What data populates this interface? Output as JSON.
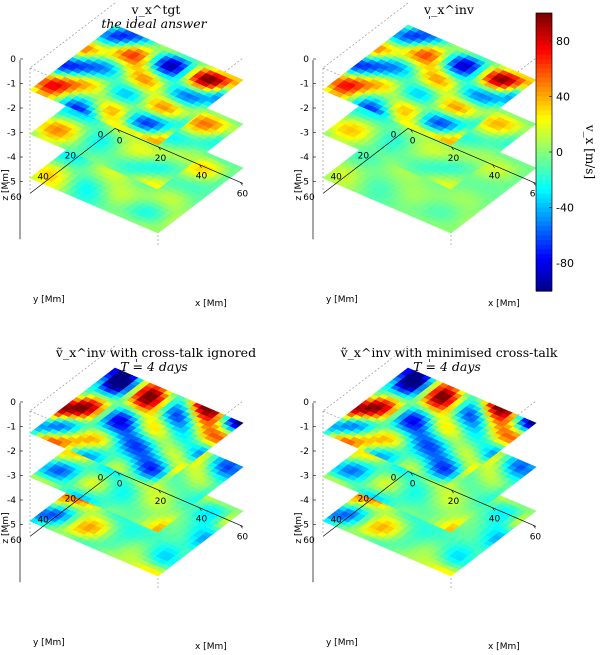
{
  "chart_data": [
    {
      "type": "heatmap",
      "title": "v_x^tgt",
      "subtitle": "the ideal answer",
      "xlabel": "x [Mm]",
      "ylabel": "y [Mm]",
      "zlabel": "z [Mm]",
      "xticks": [
        "0",
        "20",
        "40",
        "60"
      ],
      "yticks": [
        "0",
        "20",
        "40",
        "60"
      ],
      "zticks": [
        "0",
        "-1",
        "-2",
        "-3",
        "-4",
        "-5"
      ],
      "layers": [
        {
          "z": -1,
          "amplitude": 90
        },
        {
          "z": -3,
          "amplitude": 40
        },
        {
          "z": -5,
          "amplitude": 25
        }
      ],
      "seed": 11
    },
    {
      "type": "heatmap",
      "title": "v_x^inv",
      "subtitle": "",
      "xlabel": "x [Mm]",
      "ylabel": "y [Mm]",
      "zlabel": "z [Mm]",
      "xticks": [
        "0",
        "20",
        "40",
        "60"
      ],
      "yticks": [
        "0",
        "20",
        "40",
        "60"
      ],
      "zticks": [
        "0",
        "-1",
        "-2",
        "-3",
        "-4",
        "-5"
      ],
      "layers": [
        {
          "z": -1,
          "amplitude": 85
        },
        {
          "z": -3,
          "amplitude": 30
        },
        {
          "z": -5,
          "amplitude": 12
        }
      ],
      "seed": 11
    },
    {
      "type": "heatmap",
      "title": "ṽ_x^inv with cross-talk ignored",
      "subtitle": "T = 4 days",
      "xlabel": "x [Mm]",
      "ylabel": "y [Mm]",
      "zlabel": "z [Mm]",
      "xticks": [
        "0",
        "20",
        "40",
        "60"
      ],
      "yticks": [
        "0",
        "20",
        "40",
        "60"
      ],
      "zticks": [
        "0",
        "-1",
        "-2",
        "-3",
        "-4",
        "-5"
      ],
      "layers": [
        {
          "z": -1,
          "amplitude": 110
        },
        {
          "z": -3,
          "amplitude": 55
        },
        {
          "z": -5,
          "amplitude": 65
        }
      ],
      "seed": 29
    },
    {
      "type": "heatmap",
      "title": "ṽ_x^inv with minimised cross-talk",
      "subtitle": "T = 4 days",
      "xlabel": "x [Mm]",
      "ylabel": "y [Mm]",
      "zlabel": "z [Mm]",
      "xticks": [
        "0",
        "20",
        "40",
        "60"
      ],
      "yticks": [
        "0",
        "20",
        "40",
        "60"
      ],
      "zticks": [
        "0",
        "-1",
        "-2",
        "-3",
        "-4",
        "-5"
      ],
      "layers": [
        {
          "z": -1,
          "amplitude": 105
        },
        {
          "z": -3,
          "amplitude": 50
        },
        {
          "z": -5,
          "amplitude": 60
        }
      ],
      "seed": 29
    }
  ],
  "colorbar": {
    "label": "v_x [m/s]",
    "ticks": [
      80,
      40,
      0,
      -40,
      -80
    ],
    "range": [
      -100,
      100
    ],
    "colormap": "jet"
  }
}
